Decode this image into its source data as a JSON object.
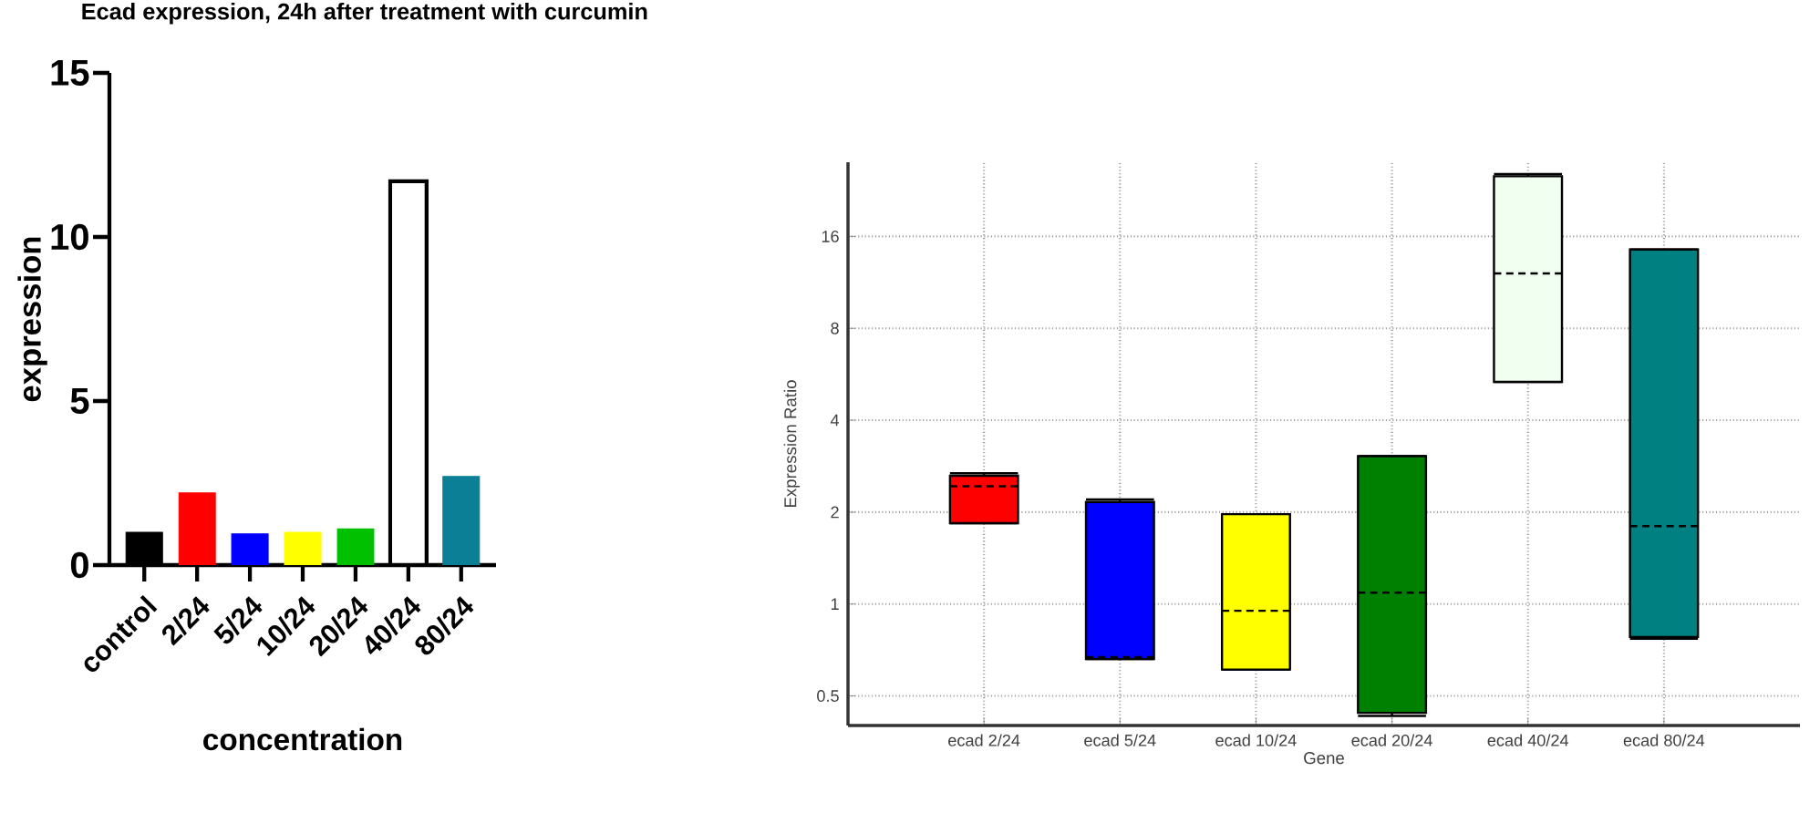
{
  "chart_data": [
    {
      "type": "bar",
      "title": "Ecad expression, 24h after treatment with curcumin",
      "xlabel": "concentration",
      "ylabel": "expression",
      "categories": [
        "control",
        "2/24",
        "5/24",
        "10/24",
        "20/24",
        "40/24",
        "80/24"
      ],
      "values": [
        1.0,
        2.2,
        0.95,
        1.0,
        1.1,
        11.7,
        2.7
      ],
      "colors": [
        "#000000",
        "#ff0000",
        "#0000ff",
        "#ffff00",
        "#00c000",
        "#ffffff",
        "#0a7f96"
      ],
      "ylim": [
        0,
        15
      ],
      "yticks": [
        0,
        5,
        10,
        15
      ]
    },
    {
      "type": "box",
      "xlabel": "Gene",
      "ylabel": "Expression Ratio",
      "categories": [
        "ecad 2/24",
        "ecad 5/24",
        "ecad 10/24",
        "ecad 20/24",
        "ecad 40/24",
        "ecad 80/24"
      ],
      "boxes": [
        {
          "low": 1.84,
          "q1": 1.84,
          "median": 2.43,
          "q3": 2.63,
          "high": 2.68
        },
        {
          "low": 0.66,
          "q1": 0.66,
          "median": 0.67,
          "q3": 2.16,
          "high": 2.2
        },
        {
          "low": 0.61,
          "q1": 0.61,
          "median": 0.95,
          "q3": 1.97,
          "high": 1.97
        },
        {
          "low": 0.43,
          "q1": 0.44,
          "median": 1.09,
          "q3": 3.05,
          "high": 3.05
        },
        {
          "low": 5.34,
          "q1": 5.34,
          "median": 12.1,
          "q3": 25.2,
          "high": 25.6
        },
        {
          "low": 0.77,
          "q1": 0.78,
          "median": 1.8,
          "q3": 14.5,
          "high": 14.5
        }
      ],
      "colors": [
        "#ff0000",
        "#0000ff",
        "#ffff00",
        "#008000",
        "#f0fff0",
        "#008080"
      ],
      "ylim": [
        0.4,
        28
      ],
      "yticks": [
        0.5,
        1,
        2,
        4,
        8,
        16
      ],
      "log": "y",
      "grid": true
    }
  ]
}
